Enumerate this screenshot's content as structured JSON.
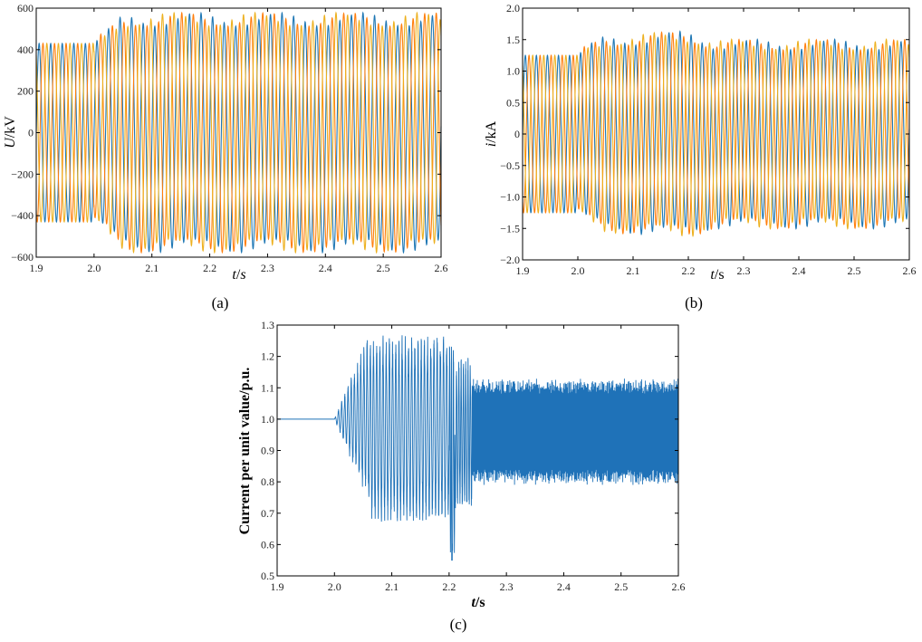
{
  "colors": {
    "blue": "#1f77b4",
    "orange": "#ff7f0e",
    "yellow": "#edb120",
    "series_c": "#1f72b8"
  },
  "captions": {
    "a": "(a)",
    "b": "(b)",
    "c": "(c)"
  },
  "chart_data": [
    {
      "id": "a",
      "type": "line",
      "ylabel_italic": "U",
      "ylabel_unit": "/kV",
      "xlabel_italic": "t",
      "xlabel_sep": "/",
      "xlabel_unit": "s",
      "xlim": [
        1.9,
        2.6
      ],
      "ylim": [
        -600,
        600
      ],
      "xticks": [
        "1.9",
        "2.0",
        "2.1",
        "2.2",
        "2.3",
        "2.4",
        "2.5",
        "2.6"
      ],
      "yticks": [
        "600",
        "400",
        "200",
        "0",
        "−200",
        "−400",
        "−600"
      ],
      "ytick_values": [
        600,
        400,
        200,
        0,
        -200,
        -400,
        -600
      ],
      "grid": false,
      "series": [
        {
          "color_key": "blue"
        },
        {
          "color_key": "orange"
        },
        {
          "color_key": "yellow"
        }
      ],
      "envelope": [
        [
          1.9,
          430
        ],
        [
          2.0,
          430
        ],
        [
          2.02,
          460
        ],
        [
          2.04,
          520
        ],
        [
          2.06,
          545
        ],
        [
          2.1,
          545
        ],
        [
          2.2,
          545
        ],
        [
          2.23,
          545
        ],
        [
          2.6,
          545
        ]
      ]
    },
    {
      "id": "b",
      "type": "line",
      "ylabel_italic": "i",
      "ylabel_unit": "/kA",
      "xlabel_italic": "t",
      "xlabel_sep": "/",
      "xlabel_unit": "s",
      "xlim": [
        1.9,
        2.6
      ],
      "ylim": [
        -2.0,
        2.0
      ],
      "xticks": [
        "1.9",
        "2.0",
        "2.1",
        "2.2",
        "2.3",
        "2.4",
        "2.5",
        "2.6"
      ],
      "yticks": [
        "2.0",
        "1.5",
        "1.0",
        "0.5",
        "0",
        "−0.5",
        "−1.0",
        "−1.5",
        "−2.0"
      ],
      "ytick_values": [
        2.0,
        1.5,
        1.0,
        0.5,
        0,
        -0.5,
        -1.0,
        -1.5,
        -2.0
      ],
      "grid": false,
      "series": [
        {
          "color_key": "blue"
        },
        {
          "color_key": "orange"
        },
        {
          "color_key": "yellow"
        }
      ],
      "envelope": [
        [
          1.9,
          1.25
        ],
        [
          2.0,
          1.25
        ],
        [
          2.02,
          1.35
        ],
        [
          2.05,
          1.48
        ],
        [
          2.1,
          1.5
        ],
        [
          2.2,
          1.55
        ],
        [
          2.22,
          1.5
        ],
        [
          2.25,
          1.42
        ],
        [
          2.6,
          1.42
        ]
      ]
    },
    {
      "id": "c",
      "type": "line",
      "ylabel": "Current per unit value/p.u.",
      "xlabel_italic": "t",
      "xlabel_unit": "/s",
      "xlim": [
        1.9,
        2.6
      ],
      "ylim": [
        0.5,
        1.3
      ],
      "xticks": [
        "1.9",
        "2.0",
        "2.1",
        "2.2",
        "2.3",
        "2.4",
        "2.5",
        "2.6"
      ],
      "yticks": [
        "1.3",
        "1.2",
        "1.1",
        "1.0",
        "0.9",
        "0.8",
        "0.7",
        "0.6",
        "0.5"
      ],
      "ytick_values": [
        1.3,
        1.2,
        1.1,
        1.0,
        0.9,
        0.8,
        0.7,
        0.6,
        0.5
      ],
      "grid": false,
      "series": [
        {
          "color_key": "series_c"
        }
      ],
      "segments": [
        {
          "x": [
            1.9,
            2.0
          ],
          "baseline": 1.0,
          "amplitude": 0.0
        },
        {
          "x": [
            2.0,
            2.06
          ],
          "baseline": 1.0,
          "amplitude_from": 0.0,
          "amplitude_to": 0.28
        },
        {
          "x": [
            2.06,
            2.22
          ],
          "baseline": 0.97,
          "amplitude": 0.3
        },
        {
          "x": [
            2.2,
            2.21
          ],
          "min": 0.55,
          "max": 1.26
        },
        {
          "x": [
            2.22,
            2.24
          ],
          "baseline": 0.95,
          "amplitude": 0.25
        },
        {
          "x": [
            2.24,
            2.6
          ],
          "baseline": 0.96,
          "amplitude": 0.17
        }
      ]
    }
  ]
}
